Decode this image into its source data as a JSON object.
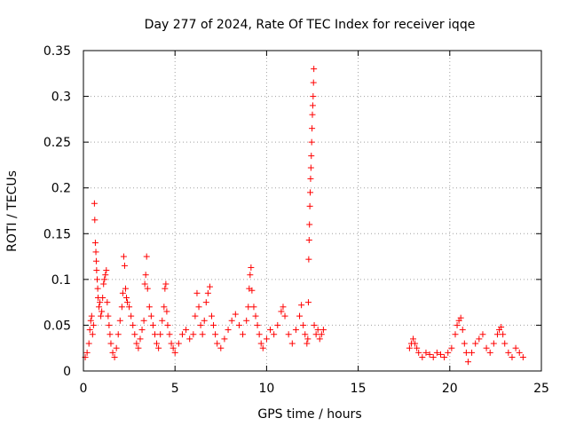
{
  "chart_data": {
    "type": "scatter",
    "title": "Day 277 of 2024, Rate Of TEC Index for receiver iqqe",
    "xlabel": "GPS time / hours",
    "ylabel": "ROTI / TECUs",
    "xlim": [
      0,
      25
    ],
    "ylim": [
      0,
      0.35
    ],
    "x_ticks": [
      0,
      5,
      10,
      15,
      20,
      25
    ],
    "x_tick_labels": [
      "0",
      "5",
      "10",
      "15",
      "20",
      "25"
    ],
    "y_ticks": [
      0,
      0.05,
      0.1,
      0.15,
      0.2,
      0.25,
      0.3,
      0.35
    ],
    "y_tick_labels": [
      "0",
      "0.05",
      "0.1",
      "0.15",
      "0.2",
      "0.25",
      "0.3",
      "0.35"
    ],
    "grid": true,
    "marker": "+",
    "marker_color": "#ff0000",
    "series": [
      {
        "name": "ROTI",
        "points": [
          [
            0.1,
            0.015
          ],
          [
            0.2,
            0.02
          ],
          [
            0.3,
            0.03
          ],
          [
            0.35,
            0.045
          ],
          [
            0.4,
            0.055
          ],
          [
            0.45,
            0.06
          ],
          [
            0.5,
            0.04
          ],
          [
            0.55,
            0.05
          ],
          [
            0.6,
            0.183
          ],
          [
            0.62,
            0.165
          ],
          [
            0.65,
            0.14
          ],
          [
            0.68,
            0.13
          ],
          [
            0.7,
            0.12
          ],
          [
            0.72,
            0.11
          ],
          [
            0.75,
            0.1
          ],
          [
            0.78,
            0.09
          ],
          [
            0.8,
            0.08
          ],
          [
            0.85,
            0.07
          ],
          [
            0.9,
            0.075
          ],
          [
            0.95,
            0.06
          ],
          [
            1.0,
            0.065
          ],
          [
            1.05,
            0.08
          ],
          [
            1.1,
            0.095
          ],
          [
            1.15,
            0.1
          ],
          [
            1.2,
            0.105
          ],
          [
            1.25,
            0.11
          ],
          [
            1.3,
            0.075
          ],
          [
            1.35,
            0.06
          ],
          [
            1.4,
            0.05
          ],
          [
            1.45,
            0.04
          ],
          [
            1.5,
            0.03
          ],
          [
            1.6,
            0.02
          ],
          [
            1.7,
            0.015
          ],
          [
            1.8,
            0.025
          ],
          [
            1.9,
            0.04
          ],
          [
            2.0,
            0.055
          ],
          [
            2.1,
            0.07
          ],
          [
            2.15,
            0.085
          ],
          [
            2.2,
            0.125
          ],
          [
            2.25,
            0.115
          ],
          [
            2.3,
            0.09
          ],
          [
            2.35,
            0.08
          ],
          [
            2.4,
            0.075
          ],
          [
            2.5,
            0.07
          ],
          [
            2.6,
            0.06
          ],
          [
            2.7,
            0.05
          ],
          [
            2.8,
            0.04
          ],
          [
            2.9,
            0.03
          ],
          [
            3.0,
            0.025
          ],
          [
            3.1,
            0.035
          ],
          [
            3.2,
            0.045
          ],
          [
            3.3,
            0.055
          ],
          [
            3.35,
            0.095
          ],
          [
            3.4,
            0.105
          ],
          [
            3.45,
            0.125
          ],
          [
            3.5,
            0.09
          ],
          [
            3.6,
            0.07
          ],
          [
            3.7,
            0.06
          ],
          [
            3.8,
            0.05
          ],
          [
            3.9,
            0.04
          ],
          [
            4.0,
            0.03
          ],
          [
            4.1,
            0.025
          ],
          [
            4.2,
            0.04
          ],
          [
            4.3,
            0.055
          ],
          [
            4.4,
            0.07
          ],
          [
            4.45,
            0.09
          ],
          [
            4.5,
            0.095
          ],
          [
            4.55,
            0.065
          ],
          [
            4.6,
            0.05
          ],
          [
            4.7,
            0.04
          ],
          [
            4.8,
            0.03
          ],
          [
            4.9,
            0.025
          ],
          [
            5.0,
            0.02
          ],
          [
            5.2,
            0.03
          ],
          [
            5.4,
            0.04
          ],
          [
            5.6,
            0.045
          ],
          [
            5.8,
            0.035
          ],
          [
            6.0,
            0.04
          ],
          [
            6.1,
            0.06
          ],
          [
            6.2,
            0.085
          ],
          [
            6.3,
            0.07
          ],
          [
            6.4,
            0.05
          ],
          [
            6.5,
            0.04
          ],
          [
            6.6,
            0.055
          ],
          [
            6.7,
            0.075
          ],
          [
            6.8,
            0.085
          ],
          [
            6.9,
            0.092
          ],
          [
            7.0,
            0.06
          ],
          [
            7.1,
            0.05
          ],
          [
            7.2,
            0.04
          ],
          [
            7.3,
            0.03
          ],
          [
            7.5,
            0.025
          ],
          [
            7.7,
            0.035
          ],
          [
            7.9,
            0.045
          ],
          [
            8.1,
            0.055
          ],
          [
            8.3,
            0.062
          ],
          [
            8.5,
            0.05
          ],
          [
            8.7,
            0.04
          ],
          [
            8.9,
            0.055
          ],
          [
            9.0,
            0.07
          ],
          [
            9.05,
            0.09
          ],
          [
            9.1,
            0.105
          ],
          [
            9.15,
            0.113
          ],
          [
            9.2,
            0.088
          ],
          [
            9.3,
            0.07
          ],
          [
            9.4,
            0.06
          ],
          [
            9.5,
            0.05
          ],
          [
            9.6,
            0.04
          ],
          [
            9.7,
            0.03
          ],
          [
            9.8,
            0.025
          ],
          [
            10.0,
            0.035
          ],
          [
            10.2,
            0.045
          ],
          [
            10.4,
            0.04
          ],
          [
            10.6,
            0.05
          ],
          [
            10.8,
            0.065
          ],
          [
            10.9,
            0.07
          ],
          [
            11.0,
            0.06
          ],
          [
            11.2,
            0.04
          ],
          [
            11.4,
            0.03
          ],
          [
            11.6,
            0.045
          ],
          [
            11.8,
            0.06
          ],
          [
            11.9,
            0.072
          ],
          [
            12.0,
            0.05
          ],
          [
            12.1,
            0.04
          ],
          [
            12.2,
            0.03
          ],
          [
            12.25,
            0.035
          ],
          [
            12.28,
            0.075
          ],
          [
            12.3,
            0.122
          ],
          [
            12.32,
            0.143
          ],
          [
            12.34,
            0.16
          ],
          [
            12.36,
            0.18
          ],
          [
            12.38,
            0.195
          ],
          [
            12.4,
            0.21
          ],
          [
            12.42,
            0.222
          ],
          [
            12.44,
            0.235
          ],
          [
            12.46,
            0.25
          ],
          [
            12.48,
            0.265
          ],
          [
            12.5,
            0.28
          ],
          [
            12.52,
            0.29
          ],
          [
            12.54,
            0.3
          ],
          [
            12.56,
            0.315
          ],
          [
            12.58,
            0.33
          ],
          [
            12.6,
            0.05
          ],
          [
            12.7,
            0.04
          ],
          [
            12.8,
            0.045
          ],
          [
            12.9,
            0.035
          ],
          [
            13.0,
            0.04
          ],
          [
            13.1,
            0.045
          ],
          [
            17.8,
            0.025
          ],
          [
            17.9,
            0.03
          ],
          [
            18.0,
            0.035
          ],
          [
            18.1,
            0.03
          ],
          [
            18.2,
            0.025
          ],
          [
            18.3,
            0.02
          ],
          [
            18.5,
            0.015
          ],
          [
            18.7,
            0.02
          ],
          [
            18.9,
            0.018
          ],
          [
            19.1,
            0.015
          ],
          [
            19.3,
            0.02
          ],
          [
            19.5,
            0.018
          ],
          [
            19.7,
            0.015
          ],
          [
            19.9,
            0.02
          ],
          [
            20.1,
            0.025
          ],
          [
            20.3,
            0.04
          ],
          [
            20.4,
            0.05
          ],
          [
            20.5,
            0.055
          ],
          [
            20.6,
            0.058
          ],
          [
            20.7,
            0.045
          ],
          [
            20.8,
            0.03
          ],
          [
            20.9,
            0.02
          ],
          [
            21.0,
            0.01
          ],
          [
            21.2,
            0.02
          ],
          [
            21.4,
            0.03
          ],
          [
            21.6,
            0.035
          ],
          [
            21.8,
            0.04
          ],
          [
            22.0,
            0.025
          ],
          [
            22.2,
            0.02
          ],
          [
            22.4,
            0.03
          ],
          [
            22.6,
            0.04
          ],
          [
            22.7,
            0.045
          ],
          [
            22.8,
            0.048
          ],
          [
            22.9,
            0.04
          ],
          [
            23.0,
            0.03
          ],
          [
            23.2,
            0.02
          ],
          [
            23.4,
            0.015
          ],
          [
            23.6,
            0.025
          ],
          [
            23.8,
            0.02
          ],
          [
            24.0,
            0.015
          ]
        ]
      }
    ]
  }
}
